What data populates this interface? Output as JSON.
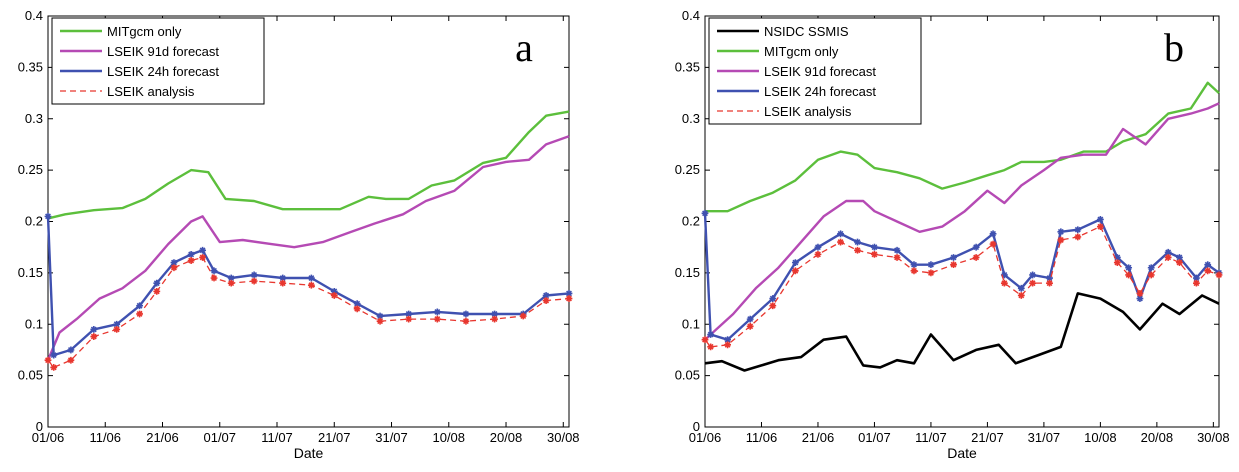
{
  "chart_data": [
    {
      "type": "line",
      "panel_label": "a",
      "xlabel": "Date",
      "ylabel": "",
      "ylim": [
        0,
        0.4
      ],
      "yticks": [
        "0",
        "0.05",
        "0.1",
        "0.15",
        "0.2",
        "0.25",
        "0.3",
        "0.35",
        "0.4"
      ],
      "xlim": [
        "01/06",
        "31/08"
      ],
      "xticks": [
        "01/06",
        "11/06",
        "21/06",
        "01/07",
        "11/07",
        "21/07",
        "31/07",
        "10/08",
        "20/08",
        "30/08"
      ],
      "grid": false,
      "legend_position": "top-left",
      "series": [
        {
          "name": "MITgcm only",
          "color": "#5cbf3c",
          "style": "solid",
          "marker": "none",
          "x": [
            "01/06",
            "04/06",
            "09/06",
            "14/06",
            "18/06",
            "22/06",
            "26/06",
            "29/06",
            "02/07",
            "07/07",
            "12/07",
            "17/07",
            "22/07",
            "27/07",
            "30/07",
            "03/08",
            "07/08",
            "11/08",
            "16/08",
            "20/08",
            "24/08",
            "27/08",
            "31/08"
          ],
          "values": [
            0.203,
            0.207,
            0.211,
            0.213,
            0.222,
            0.237,
            0.25,
            0.248,
            0.222,
            0.22,
            0.212,
            0.212,
            0.212,
            0.224,
            0.222,
            0.222,
            0.235,
            0.24,
            0.257,
            0.262,
            0.287,
            0.303,
            0.307
          ]
        },
        {
          "name": "LSEIK 91d forecast",
          "color": "#b54ab4",
          "style": "solid",
          "marker": "none",
          "x": [
            "01/06",
            "03/06",
            "06/06",
            "10/06",
            "14/06",
            "18/06",
            "22/06",
            "26/06",
            "28/06",
            "01/07",
            "05/07",
            "10/07",
            "14/07",
            "19/07",
            "24/07",
            "28/07",
            "02/08",
            "06/08",
            "11/08",
            "16/08",
            "20/08",
            "24/08",
            "27/08",
            "31/08"
          ],
          "values": [
            0.065,
            0.092,
            0.105,
            0.125,
            0.135,
            0.152,
            0.178,
            0.2,
            0.205,
            0.18,
            0.182,
            0.178,
            0.175,
            0.18,
            0.19,
            0.198,
            0.207,
            0.22,
            0.23,
            0.253,
            0.258,
            0.26,
            0.275,
            0.283
          ]
        },
        {
          "name": "LSEIK 24h forecast",
          "color": "#3f51b0",
          "style": "solid",
          "marker": "*",
          "x": [
            "01/06",
            "02/06",
            "05/06",
            "09/06",
            "13/06",
            "17/06",
            "20/06",
            "23/06",
            "26/06",
            "28/06",
            "30/06",
            "03/07",
            "07/07",
            "12/07",
            "17/07",
            "21/07",
            "25/07",
            "29/07",
            "03/08",
            "08/08",
            "13/08",
            "18/08",
            "23/08",
            "27/08",
            "31/08"
          ],
          "values": [
            0.205,
            0.07,
            0.075,
            0.095,
            0.1,
            0.118,
            0.14,
            0.16,
            0.168,
            0.172,
            0.152,
            0.145,
            0.148,
            0.145,
            0.145,
            0.132,
            0.12,
            0.108,
            0.11,
            0.112,
            0.11,
            0.11,
            0.11,
            0.128,
            0.13
          ]
        },
        {
          "name": "LSEIK analysis",
          "color": "#e8372f",
          "style": "dashed",
          "marker": "*",
          "x": [
            "01/06",
            "02/06",
            "05/06",
            "09/06",
            "13/06",
            "17/06",
            "20/06",
            "23/06",
            "26/06",
            "28/06",
            "30/06",
            "03/07",
            "07/07",
            "12/07",
            "17/07",
            "21/07",
            "25/07",
            "29/07",
            "03/08",
            "08/08",
            "13/08",
            "18/08",
            "23/08",
            "27/08",
            "31/08"
          ],
          "values": [
            0.065,
            0.058,
            0.065,
            0.088,
            0.095,
            0.11,
            0.132,
            0.155,
            0.162,
            0.165,
            0.145,
            0.14,
            0.142,
            0.14,
            0.138,
            0.128,
            0.115,
            0.103,
            0.105,
            0.105,
            0.103,
            0.105,
            0.108,
            0.123,
            0.125
          ]
        }
      ]
    },
    {
      "type": "line",
      "panel_label": "b",
      "xlabel": "Date",
      "ylabel": "",
      "ylim": [
        0,
        0.4
      ],
      "yticks": [
        "0",
        "0.05",
        "0.1",
        "0.15",
        "0.2",
        "0.25",
        "0.3",
        "0.35",
        "0.4"
      ],
      "xlim": [
        "01/06",
        "31/08"
      ],
      "xticks": [
        "01/06",
        "11/06",
        "21/06",
        "01/07",
        "11/07",
        "21/07",
        "31/07",
        "10/08",
        "20/08",
        "30/08"
      ],
      "grid": false,
      "legend_position": "top-left",
      "series": [
        {
          "name": "NSIDC SSMIS",
          "color": "#000000",
          "style": "solid",
          "marker": "none",
          "x": [
            "01/06",
            "04/06",
            "08/06",
            "11/06",
            "14/06",
            "18/06",
            "22/06",
            "26/06",
            "29/06",
            "02/07",
            "05/07",
            "08/07",
            "11/07",
            "15/07",
            "19/07",
            "23/07",
            "26/07",
            "30/07",
            "03/08",
            "06/08",
            "10/08",
            "14/08",
            "17/08",
            "21/08",
            "24/08",
            "28/08",
            "31/08"
          ],
          "values": [
            0.062,
            0.064,
            0.055,
            0.06,
            0.065,
            0.068,
            0.085,
            0.088,
            0.06,
            0.058,
            0.065,
            0.062,
            0.09,
            0.065,
            0.075,
            0.08,
            0.062,
            0.07,
            0.078,
            0.13,
            0.125,
            0.112,
            0.095,
            0.12,
            0.11,
            0.128,
            0.12
          ]
        },
        {
          "name": "MITgcm only",
          "color": "#5cbf3c",
          "style": "solid",
          "marker": "none",
          "x": [
            "01/06",
            "05/06",
            "09/06",
            "13/06",
            "17/06",
            "21/06",
            "25/06",
            "28/06",
            "01/07",
            "05/07",
            "09/07",
            "13/07",
            "17/07",
            "21/07",
            "24/07",
            "27/07",
            "31/07",
            "03/08",
            "07/08",
            "11/08",
            "14/08",
            "18/08",
            "22/08",
            "26/08",
            "29/08",
            "31/08"
          ],
          "values": [
            0.21,
            0.21,
            0.22,
            0.228,
            0.24,
            0.26,
            0.268,
            0.265,
            0.252,
            0.248,
            0.242,
            0.232,
            0.238,
            0.245,
            0.25,
            0.258,
            0.258,
            0.26,
            0.268,
            0.268,
            0.278,
            0.285,
            0.305,
            0.31,
            0.335,
            0.325
          ]
        },
        {
          "name": "LSEIK 91d forecast",
          "color": "#b54ab4",
          "style": "solid",
          "marker": "none",
          "x": [
            "01/06",
            "03/06",
            "06/06",
            "10/06",
            "14/06",
            "18/06",
            "22/06",
            "26/06",
            "29/06",
            "01/07",
            "05/07",
            "09/07",
            "13/07",
            "17/07",
            "21/07",
            "24/07",
            "27/07",
            "31/07",
            "03/08",
            "07/08",
            "11/08",
            "14/08",
            "18/08",
            "22/08",
            "26/08",
            "29/08",
            "31/08"
          ],
          "values": [
            0.085,
            0.095,
            0.11,
            0.135,
            0.155,
            0.18,
            0.205,
            0.22,
            0.22,
            0.21,
            0.2,
            0.19,
            0.195,
            0.21,
            0.23,
            0.218,
            0.235,
            0.25,
            0.262,
            0.265,
            0.265,
            0.29,
            0.275,
            0.3,
            0.305,
            0.31,
            0.315
          ]
        },
        {
          "name": "LSEIK 24h forecast",
          "color": "#3f51b0",
          "style": "solid",
          "marker": "*",
          "x": [
            "01/06",
            "02/06",
            "05/06",
            "09/06",
            "13/06",
            "17/06",
            "21/06",
            "25/06",
            "28/06",
            "01/07",
            "05/07",
            "08/07",
            "11/07",
            "15/07",
            "19/07",
            "22/07",
            "24/07",
            "27/07",
            "29/07",
            "01/08",
            "03/08",
            "06/08",
            "10/08",
            "13/08",
            "15/08",
            "17/08",
            "19/08",
            "22/08",
            "24/08",
            "27/08",
            "29/08",
            "31/08"
          ],
          "values": [
            0.208,
            0.09,
            0.085,
            0.105,
            0.125,
            0.16,
            0.175,
            0.188,
            0.18,
            0.175,
            0.172,
            0.158,
            0.158,
            0.165,
            0.175,
            0.188,
            0.148,
            0.135,
            0.148,
            0.145,
            0.19,
            0.192,
            0.202,
            0.165,
            0.155,
            0.125,
            0.155,
            0.17,
            0.165,
            0.145,
            0.158,
            0.15
          ]
        },
        {
          "name": "LSEIK analysis",
          "color": "#e8372f",
          "style": "dashed",
          "marker": "*",
          "x": [
            "01/06",
            "02/06",
            "05/06",
            "09/06",
            "13/06",
            "17/06",
            "21/06",
            "25/06",
            "28/06",
            "01/07",
            "05/07",
            "08/07",
            "11/07",
            "15/07",
            "19/07",
            "22/07",
            "24/07",
            "27/07",
            "29/07",
            "01/08",
            "03/08",
            "06/08",
            "10/08",
            "13/08",
            "15/08",
            "17/08",
            "19/08",
            "22/08",
            "24/08",
            "27/08",
            "29/08",
            "31/08"
          ],
          "values": [
            0.085,
            0.078,
            0.08,
            0.098,
            0.118,
            0.152,
            0.168,
            0.18,
            0.172,
            0.168,
            0.165,
            0.152,
            0.15,
            0.158,
            0.165,
            0.178,
            0.14,
            0.128,
            0.14,
            0.14,
            0.182,
            0.185,
            0.195,
            0.16,
            0.148,
            0.13,
            0.148,
            0.165,
            0.16,
            0.14,
            0.152,
            0.148
          ]
        }
      ]
    }
  ]
}
